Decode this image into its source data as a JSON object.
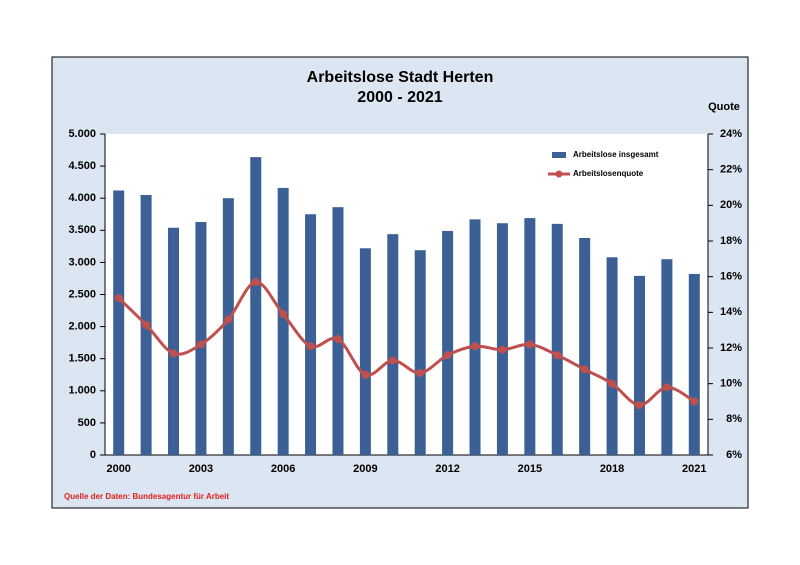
{
  "chart_data": {
    "type": "combo",
    "title": "Arbeitslose Stadt Herten",
    "subtitle": "2000 - 2021",
    "y2_label": "Quote",
    "source": "Quelle der Daten: Bundesagentur für Arbeit",
    "categories": [
      "2000",
      null,
      null,
      "2003",
      null,
      null,
      "2006",
      null,
      null,
      "2009",
      null,
      null,
      "2012",
      null,
      null,
      "2015",
      null,
      null,
      "2018",
      null,
      null,
      "2021"
    ],
    "series": [
      {
        "name": "Arbeitslose insgesamt",
        "type": "bar",
        "color": "#3a6095",
        "values": [
          4120,
          4050,
          3540,
          3630,
          4000,
          4640,
          4160,
          3750,
          3860,
          3220,
          3440,
          3190,
          3490,
          3670,
          3610,
          3690,
          3600,
          3380,
          3080,
          2790,
          3050,
          2820
        ]
      },
      {
        "name": "Arbeitslosenquote",
        "type": "line",
        "axis": "y2",
        "color": "#c0504d",
        "values": [
          14.8,
          13.3,
          11.7,
          12.2,
          13.6,
          15.7,
          13.9,
          12.1,
          12.5,
          10.5,
          11.3,
          10.6,
          11.6,
          12.1,
          11.9,
          12.2,
          11.6,
          10.8,
          10.0,
          8.8,
          9.8,
          9.0
        ]
      }
    ],
    "ylim": [
      0,
      5000
    ],
    "yticks": [
      0,
      500,
      {
        "value": 1000,
        "label": "1.000"
      },
      {
        "value": 1500,
        "label": "1.500"
      },
      {
        "value": 2000,
        "label": "2.000"
      },
      {
        "value": 2500,
        "label": "2.500"
      },
      {
        "value": 3000,
        "label": "3.000"
      },
      {
        "value": 3500,
        "label": "3.500"
      },
      {
        "value": 4000,
        "label": "4.000"
      },
      {
        "value": 4500,
        "label": "4.500"
      },
      {
        "value": 5000,
        "label": "5.000"
      }
    ],
    "y2lim": [
      6,
      24
    ],
    "y2ticks": [
      {
        "value": 6,
        "label": "6%"
      },
      {
        "value": 8,
        "label": "8%"
      },
      {
        "value": 10,
        "label": "10%"
      },
      {
        "value": 12,
        "label": "12%"
      },
      {
        "value": 14,
        "label": "14%"
      },
      {
        "value": 16,
        "label": "16%"
      },
      {
        "value": 18,
        "label": "18%"
      },
      {
        "value": 20,
        "label": "20%"
      },
      {
        "value": 22,
        "label": "22%"
      },
      {
        "value": 24,
        "label": "24%"
      }
    ],
    "grid": false
  }
}
